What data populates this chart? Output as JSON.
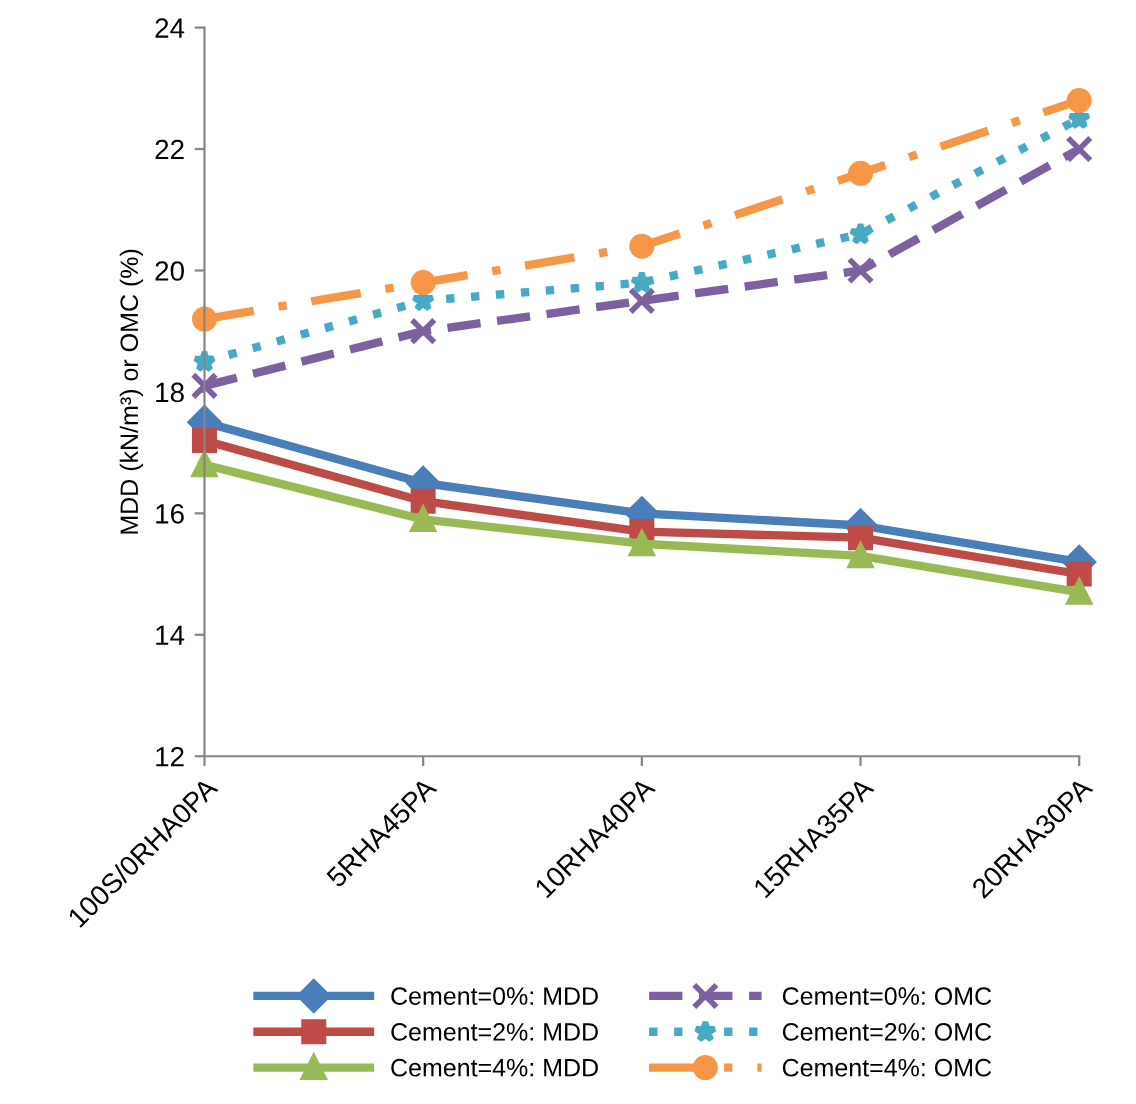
{
  "chart_data": {
    "type": "line",
    "ylabel": "MDD (kN/m³) or OMC (%)",
    "categories": [
      "100S/0RHA0PA",
      "5RHA45PA",
      "10RHA40PA",
      "15RHA35PA",
      "20RHA30PA"
    ],
    "ylim": [
      12,
      24
    ],
    "yticks": [
      12,
      14,
      16,
      18,
      20,
      22,
      24
    ],
    "grid": false,
    "legend": "bottom",
    "series": [
      {
        "name": "Cement=0%: MDD",
        "color": "#4a7ebb",
        "marker": "diamond",
        "line_style": "solid",
        "values": [
          17.5,
          16.5,
          16.0,
          15.8,
          15.2
        ]
      },
      {
        "name": "Cement=2%: MDD",
        "color": "#be4b48",
        "marker": "square",
        "line_style": "solid",
        "values": [
          17.2,
          16.2,
          15.7,
          15.6,
          15.0
        ]
      },
      {
        "name": "Cement=4%: MDD",
        "color": "#98b954",
        "marker": "triangle",
        "line_style": "solid",
        "values": [
          16.8,
          15.9,
          15.5,
          15.3,
          14.7
        ]
      },
      {
        "name": "Cement=0%: OMC",
        "color": "#7d60a0",
        "marker": "cross",
        "line_style": "dashed",
        "values": [
          18.1,
          19.0,
          19.5,
          20.0,
          22.0
        ]
      },
      {
        "name": "Cement=2%: OMC",
        "color": "#46aac5",
        "marker": "star",
        "line_style": "dotted",
        "values": [
          18.5,
          19.5,
          19.8,
          20.6,
          22.5
        ]
      },
      {
        "name": "Cement=4%: OMC",
        "color": "#f79646",
        "marker": "circle",
        "line_style": "dashdot",
        "values": [
          19.2,
          19.8,
          20.4,
          21.6,
          22.8
        ]
      }
    ]
  }
}
